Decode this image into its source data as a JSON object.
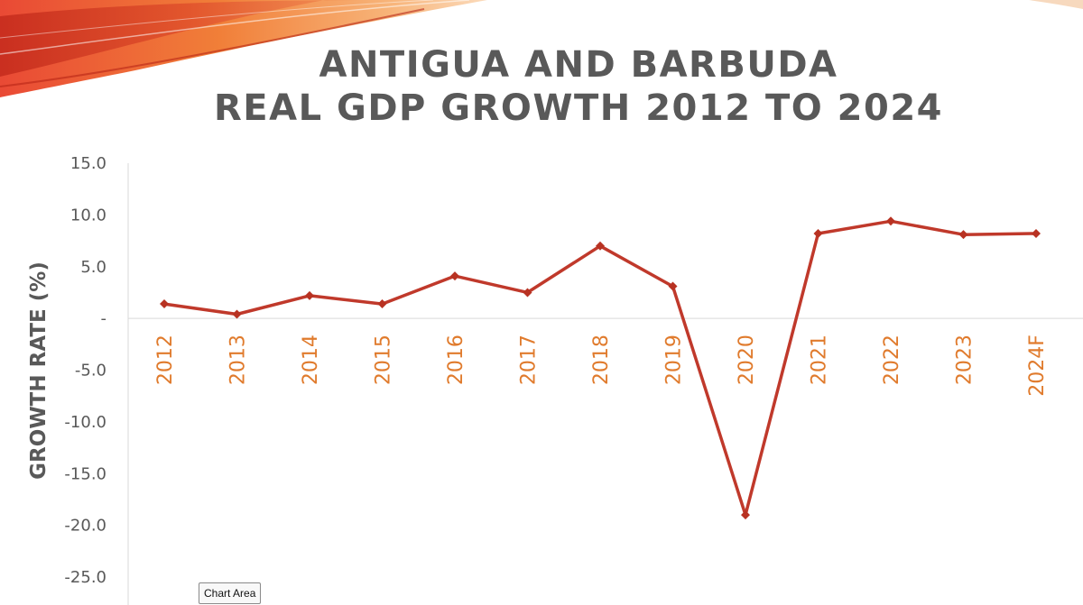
{
  "title_lines": [
    "ANTIGUA AND BARBUDA",
    "REAL GDP GROWTH 2012 TO 2024"
  ],
  "tooltip": "Chart Area",
  "chart_data": {
    "type": "line",
    "title": "ANTIGUA AND BARBUDA REAL GDP GROWTH 2012 TO 2024",
    "xlabel": "",
    "ylabel": "GROWTH RATE (%)",
    "categories": [
      "2012",
      "2013",
      "2014",
      "2015",
      "2016",
      "2017",
      "2018",
      "2019",
      "2020",
      "2021",
      "2022",
      "2023",
      "2024F"
    ],
    "series": [
      {
        "values": [
          1.4,
          0.4,
          2.2,
          1.4,
          4.1,
          2.5,
          7.0,
          3.1,
          -19.0,
          8.2,
          9.4,
          8.1,
          8.2
        ]
      }
    ],
    "ylim": [
      -25,
      15
    ],
    "yticks": [
      15,
      10,
      5,
      0,
      -5,
      -10,
      -15,
      -20,
      -25
    ],
    "ytick_labels": [
      "15.0",
      "10.0",
      "5.0",
      "-",
      "-5.0",
      "-10.0",
      "-15.0",
      "-20.0",
      "-25.0"
    ],
    "grid": false,
    "legend": "none",
    "colors": {
      "line": "#c0392b",
      "marker": "#b83222",
      "xtick": "#e07b2d",
      "text": "#595959",
      "axis": "#d9d9d9"
    }
  }
}
